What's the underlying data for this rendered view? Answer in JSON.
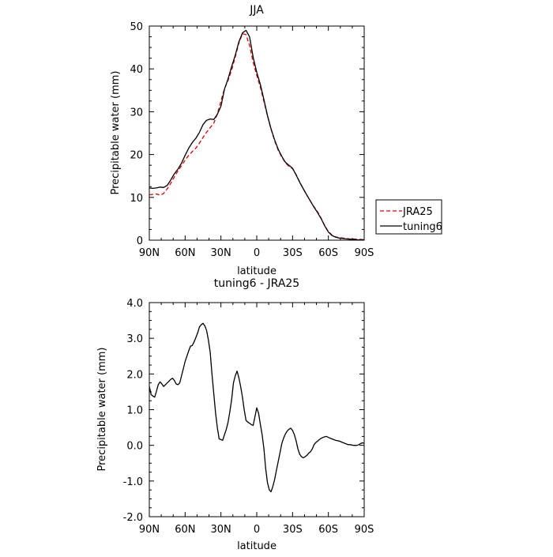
{
  "chart_data": [
    {
      "type": "line",
      "title": "JJA",
      "xlabel": "latitude",
      "ylabel": "Precipitable water (mm)",
      "xlim": [
        90,
        -90
      ],
      "ylim": [
        0,
        50
      ],
      "x_ticks": [
        90,
        60,
        30,
        0,
        -30,
        -60,
        -90
      ],
      "x_tick_labels": [
        "90N",
        "60N",
        "30N",
        "0",
        "30S",
        "60S",
        "90S"
      ],
      "y_ticks": [
        0,
        10,
        20,
        30,
        40,
        50
      ],
      "y_tick_labels": [
        "0",
        "10",
        "20",
        "30",
        "40",
        "50"
      ],
      "legend": [
        "JRA25",
        "tuning6"
      ],
      "legend_placement": "right",
      "grid": false,
      "series": [
        {
          "name": "JRA25",
          "color": "#e00000",
          "dash": true,
          "x": [
            90,
            87,
            84,
            81,
            78,
            75,
            72,
            69,
            66,
            63,
            60,
            57,
            54,
            51,
            48,
            45,
            42,
            39,
            36,
            33,
            30,
            27,
            24,
            21,
            18,
            15,
            12,
            9,
            6,
            3,
            0,
            -3,
            -6,
            -9,
            -12,
            -15,
            -18,
            -21,
            -24,
            -27,
            -30,
            -33,
            -36,
            -39,
            -42,
            -45,
            -48,
            -51,
            -54,
            -57,
            -60,
            -63,
            -66,
            -69,
            -72,
            -75,
            -78,
            -81,
            -84,
            -87,
            -90
          ],
          "values": [
            10.6,
            10.7,
            10.8,
            10.5,
            10.9,
            12.0,
            13.3,
            14.8,
            16.2,
            17.4,
            18.7,
            19.8,
            20.7,
            21.5,
            22.7,
            24.0,
            25.2,
            26.3,
            27.3,
            29.5,
            32.5,
            35.4,
            37.3,
            39.8,
            42.8,
            46.0,
            48.2,
            48.0,
            45.5,
            41.5,
            38.5,
            35.8,
            32.4,
            29.0,
            25.9,
            23.2,
            21.0,
            19.4,
            18.1,
            17.2,
            16.7,
            15.3,
            13.6,
            12.0,
            10.5,
            9.1,
            7.8,
            6.6,
            5.1,
            3.4,
            2.0,
            1.2,
            0.8,
            0.6,
            0.5,
            0.4,
            0.3,
            0.3,
            0.2,
            0.2,
            0.1
          ]
        },
        {
          "name": "tuning6",
          "color": "#000000",
          "dash": false,
          "x": [
            90,
            87,
            84,
            81,
            78,
            75,
            72,
            69,
            66,
            63,
            60,
            57,
            54,
            51,
            48,
            45,
            42,
            39,
            36,
            33,
            30,
            27,
            24,
            21,
            18,
            15,
            12,
            9,
            6,
            3,
            0,
            -3,
            -6,
            -9,
            -12,
            -15,
            -18,
            -21,
            -24,
            -27,
            -30,
            -33,
            -36,
            -39,
            -42,
            -45,
            -48,
            -51,
            -54,
            -57,
            -60,
            -63,
            -66,
            -69,
            -72,
            -75,
            -78,
            -81,
            -84,
            -87,
            -90
          ],
          "values": [
            12.2,
            12.1,
            12.2,
            12.4,
            12.3,
            12.8,
            14.1,
            15.5,
            16.6,
            18.0,
            19.8,
            21.5,
            22.8,
            23.8,
            25.2,
            27.0,
            28.0,
            28.3,
            28.2,
            29.4,
            31.3,
            35.3,
            37.7,
            40.6,
            43.2,
            46.3,
            48.4,
            49.0,
            47.5,
            42.7,
            39.2,
            36.4,
            32.8,
            29.1,
            26.0,
            23.4,
            21.2,
            19.6,
            18.2,
            17.5,
            16.8,
            15.2,
            13.5,
            12.0,
            10.5,
            9.1,
            7.7,
            6.4,
            5.0,
            3.3,
            1.9,
            1.1,
            0.7,
            0.5,
            0.4,
            0.3,
            0.2,
            0.2,
            0.1,
            0.1,
            0.1
          ]
        }
      ]
    },
    {
      "type": "line",
      "title": "tuning6 - JRA25",
      "xlabel": "latitude",
      "ylabel": "Precipitable water (mm)",
      "xlim": [
        90,
        -90
      ],
      "ylim": [
        -2.0,
        4.0
      ],
      "x_ticks": [
        90,
        60,
        30,
        0,
        -30,
        -60,
        -90
      ],
      "x_tick_labels": [
        "90N",
        "60N",
        "30N",
        "0",
        "30S",
        "60S",
        "90S"
      ],
      "y_ticks": [
        -2.0,
        -1.0,
        0.0,
        1.0,
        2.0,
        3.0,
        4.0
      ],
      "y_tick_labels": [
        "-2.0",
        "-1.0",
        "0.0",
        "1.0",
        "2.0",
        "3.0",
        "4.0"
      ],
      "grid": false,
      "series": [
        {
          "color": "#000000",
          "dash": false,
          "x": [
            90,
            88.5,
            87,
            85.5,
            84,
            82.5,
            81,
            79.5,
            78,
            76.5,
            75,
            73.5,
            72,
            70.5,
            69,
            67.5,
            66,
            64.5,
            63,
            61.5,
            60,
            58.5,
            57,
            55.5,
            54,
            52.5,
            51,
            49.5,
            48,
            46.5,
            45,
            43.5,
            42,
            40.5,
            39,
            37.5,
            36,
            34.5,
            33,
            31.5,
            30,
            28.5,
            27,
            25.5,
            24,
            22.5,
            21,
            19.5,
            18,
            16.5,
            15,
            13.5,
            12,
            10.5,
            9,
            7.5,
            6,
            4.5,
            3,
            1.5,
            0,
            -1.5,
            -3,
            -4.5,
            -6,
            -7.5,
            -9,
            -10.5,
            -12,
            -13.5,
            -15,
            -16.5,
            -18,
            -19.5,
            -21,
            -22.5,
            -24,
            -25.5,
            -27,
            -28.5,
            -30,
            -31.5,
            -33,
            -34.5,
            -36,
            -37.5,
            -39,
            -40.5,
            -42,
            -43.5,
            -45,
            -46.5,
            -48,
            -49.5,
            -51,
            -52.5,
            -54,
            -55.5,
            -57,
            -58.5,
            -60,
            -61.5,
            -63,
            -64.5,
            -66,
            -67.5,
            -69,
            -70.5,
            -72,
            -73.5,
            -75,
            -76.5,
            -78,
            -79.5,
            -81,
            -82.5,
            -84,
            -85.5,
            -87,
            -88.5,
            -90
          ],
          "values": [
            1.65,
            1.42,
            1.38,
            1.35,
            1.52,
            1.7,
            1.78,
            1.72,
            1.65,
            1.7,
            1.75,
            1.8,
            1.85,
            1.88,
            1.82,
            1.72,
            1.7,
            1.75,
            1.95,
            2.15,
            2.35,
            2.5,
            2.65,
            2.78,
            2.8,
            2.9,
            3.02,
            3.15,
            3.32,
            3.38,
            3.42,
            3.35,
            3.22,
            2.95,
            2.6,
            2.0,
            1.45,
            0.9,
            0.5,
            0.18,
            0.16,
            0.14,
            0.3,
            0.45,
            0.65,
            0.95,
            1.3,
            1.75,
            1.95,
            2.08,
            1.9,
            1.65,
            1.35,
            1.0,
            0.7,
            0.65,
            0.62,
            0.58,
            0.56,
            0.8,
            1.05,
            0.9,
            0.6,
            0.3,
            -0.1,
            -0.65,
            -1.05,
            -1.25,
            -1.3,
            -1.15,
            -0.95,
            -0.7,
            -0.45,
            -0.2,
            0.05,
            0.2,
            0.32,
            0.4,
            0.45,
            0.48,
            0.42,
            0.3,
            0.12,
            -0.1,
            -0.25,
            -0.32,
            -0.35,
            -0.32,
            -0.28,
            -0.22,
            -0.18,
            -0.1,
            0.02,
            0.08,
            0.12,
            0.16,
            0.2,
            0.22,
            0.24,
            0.25,
            0.22,
            0.2,
            0.18,
            0.16,
            0.14,
            0.13,
            0.12,
            0.1,
            0.08,
            0.06,
            0.04,
            0.02,
            0.02,
            0.01,
            0.0,
            0.0,
            0.0,
            0.02,
            0.05,
            0.07,
            0.06
          ]
        }
      ]
    }
  ]
}
